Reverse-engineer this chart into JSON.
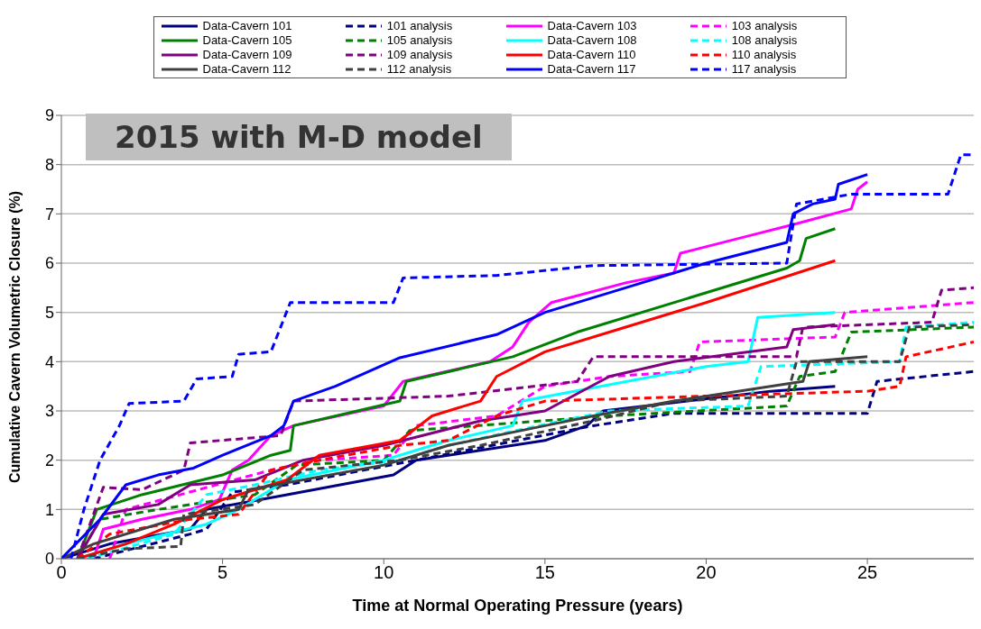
{
  "chart_data": {
    "type": "line",
    "xlabel": "Time at Normal Operating Pressure (years)",
    "ylabel": "Cumulative Cavern Volumetric Closure (%)",
    "annotations": [
      "2015 with M-D model"
    ],
    "xlim": [
      0,
      28.3
    ],
    "xticks": [
      0,
      5,
      10,
      15,
      20,
      25
    ],
    "ylim": [
      0,
      9
    ],
    "yticks": [
      0,
      1,
      2,
      3,
      4,
      5,
      6,
      7,
      8,
      9
    ],
    "grid": "y",
    "legend": "top",
    "marker": "none",
    "series": [
      {
        "name": "Data-Cavern 101",
        "color": "#000080",
        "line_style": "solid",
        "x": [
          0,
          1.5,
          4,
          4.5,
          7,
          10.3,
          11,
          15,
          16.3,
          16.8,
          22,
          24
        ],
        "values": [
          0,
          0.3,
          0.6,
          1.0,
          1.3,
          1.7,
          2.0,
          2.4,
          2.7,
          3.0,
          3.4,
          3.5
        ]
      },
      {
        "name": "101 analysis",
        "color": "#000080",
        "line_style": "dashed",
        "x": [
          1,
          4,
          4.5,
          5.3,
          7,
          11,
          16.5,
          19,
          25,
          25.3,
          28.3
        ],
        "values": [
          0,
          0.5,
          0.6,
          1.35,
          1.5,
          2.0,
          2.7,
          2.95,
          2.95,
          3.6,
          3.8
        ]
      },
      {
        "name": "Data-Cavern 103",
        "color": "#ff00ff",
        "line_style": "solid",
        "x": [
          1,
          1.3,
          2.5,
          4,
          4.9,
          5.3,
          5.8,
          6.5,
          7.2,
          10,
          10.6,
          13.3,
          14,
          14.5,
          15.2,
          17.5,
          19,
          19.2,
          21,
          22.8,
          24.5,
          24.7,
          25
        ],
        "values": [
          0,
          0.6,
          0.8,
          1.0,
          1.2,
          1.8,
          2.0,
          2.5,
          2.7,
          3.1,
          3.6,
          4.0,
          4.3,
          4.8,
          5.2,
          5.6,
          5.8,
          6.2,
          6.5,
          6.8,
          7.1,
          7.5,
          7.65
        ]
      },
      {
        "name": "103 analysis",
        "color": "#ff00ff",
        "line_style": "dashed",
        "x": [
          1.5,
          2,
          6.5,
          8,
          10.3,
          11,
          13.5,
          15,
          17,
          19.5,
          19.8,
          24,
          24.3,
          28.3
        ],
        "values": [
          0,
          1.0,
          1.8,
          2.0,
          2.1,
          2.7,
          2.9,
          3.5,
          3.7,
          3.8,
          4.4,
          4.5,
          5.0,
          5.2
        ]
      },
      {
        "name": "Data-Cavern 105",
        "color": "#008000",
        "line_style": "solid",
        "x": [
          0.5,
          1.1,
          2.5,
          5,
          6.5,
          7.1,
          7.2,
          10.5,
          10.7,
          14,
          16,
          19.5,
          22.5,
          22.9,
          23.1,
          24
        ],
        "values": [
          0,
          1.0,
          1.3,
          1.7,
          2.1,
          2.2,
          2.7,
          3.2,
          3.6,
          4.1,
          4.6,
          5.3,
          5.9,
          6.05,
          6.5,
          6.7
        ]
      },
      {
        "name": "105 analysis",
        "color": "#008000",
        "line_style": "dashed",
        "x": [
          0.5,
          1.2,
          3,
          6,
          7.3,
          10,
          10.8,
          17,
          22.5,
          22.9,
          24,
          24.5,
          28.3
        ],
        "values": [
          0,
          0.8,
          1.0,
          1.3,
          1.9,
          2.0,
          2.6,
          2.9,
          3.1,
          3.7,
          3.8,
          4.6,
          4.7
        ]
      },
      {
        "name": "Data-Cavern 108",
        "color": "#00ffff",
        "line_style": "solid",
        "x": [
          0.5,
          2,
          4.5,
          5.5,
          7,
          10,
          12,
          14,
          14.3,
          20,
          21.3,
          21.6,
          24
        ],
        "values": [
          0,
          0.3,
          0.7,
          1.0,
          1.6,
          2.0,
          2.4,
          2.7,
          3.2,
          3.9,
          4.0,
          4.9,
          5.0
        ]
      },
      {
        "name": "108 analysis",
        "color": "#00ffff",
        "line_style": "dashed",
        "x": [
          0.8,
          3.5,
          4.5,
          6,
          8,
          10.5,
          12,
          14.8,
          17,
          21.3,
          21.7,
          26,
          26.2,
          28.3
        ],
        "values": [
          0,
          0.5,
          1.3,
          1.5,
          1.8,
          2.0,
          2.3,
          2.7,
          3.0,
          3.1,
          3.9,
          4.0,
          4.7,
          4.8
        ]
      },
      {
        "name": "Data-Cavern 109",
        "color": "#800080",
        "line_style": "solid",
        "x": [
          0.5,
          1.3,
          3,
          4,
          6,
          7.5,
          10,
          13,
          15,
          17,
          19,
          22.5,
          22.7,
          24
        ],
        "values": [
          0,
          0.9,
          1.1,
          1.5,
          1.6,
          2.0,
          2.3,
          2.8,
          3.0,
          3.7,
          4.0,
          4.3,
          4.65,
          4.75
        ]
      },
      {
        "name": "109 analysis",
        "color": "#800080",
        "line_style": "dashed",
        "x": [
          0.5,
          1.3,
          2.5,
          3.8,
          4,
          6.8,
          7.2,
          12,
          16,
          16.5,
          22.8,
          23,
          27,
          27.3,
          28.3
        ],
        "values": [
          0,
          1.45,
          1.4,
          1.8,
          2.35,
          2.5,
          3.2,
          3.3,
          3.6,
          4.1,
          4.1,
          4.7,
          4.8,
          5.45,
          5.5
        ]
      },
      {
        "name": "Data-Cavern 110",
        "color": "#ff0000",
        "line_style": "solid",
        "x": [
          0.5,
          2,
          3.5,
          5,
          6.5,
          7,
          8,
          10.5,
          11.5,
          13,
          13.5,
          15,
          17,
          20,
          24
        ],
        "values": [
          0,
          0.3,
          0.7,
          1.2,
          1.5,
          1.6,
          2.1,
          2.4,
          2.9,
          3.2,
          3.7,
          4.2,
          4.6,
          5.2,
          6.05
        ]
      },
      {
        "name": "110 analysis",
        "color": "#ff0000",
        "line_style": "dashed",
        "x": [
          0.5,
          1.5,
          4,
          5.5,
          6.5,
          8,
          10.5,
          12,
          13.5,
          15,
          20,
          25,
          26,
          26.2,
          28.3
        ],
        "values": [
          0,
          0.5,
          0.8,
          0.9,
          1.8,
          2.0,
          2.3,
          2.4,
          2.9,
          3.2,
          3.3,
          3.4,
          3.5,
          4.1,
          4.4
        ]
      },
      {
        "name": "Data-Cavern 112",
        "color": "#404040",
        "line_style": "solid",
        "x": [
          0,
          1,
          3.5,
          5.5,
          5.8,
          10,
          12,
          15,
          16.5,
          19,
          23,
          23.2,
          25
        ],
        "values": [
          0,
          0.3,
          0.8,
          1.0,
          1.4,
          1.9,
          2.3,
          2.7,
          2.9,
          3.2,
          3.6,
          4.0,
          4.1
        ]
      },
      {
        "name": "112 analysis",
        "color": "#404040",
        "line_style": "dashed",
        "x": [
          0.5,
          2,
          3.7,
          3.8,
          6,
          7.5,
          10.5,
          13,
          16.5,
          19,
          22.5,
          22.8,
          26,
          26.3,
          28.3
        ],
        "values": [
          0,
          0.2,
          0.25,
          0.9,
          1.1,
          1.8,
          2.0,
          2.3,
          2.8,
          3.2,
          3.3,
          4.0,
          4.0,
          4.7,
          4.75
        ]
      },
      {
        "name": "Data-Cavern 117",
        "color": "#0000ff",
        "line_style": "solid",
        "x": [
          0,
          1.2,
          2,
          3,
          4.1,
          5,
          6.5,
          6.9,
          7.2,
          8.5,
          10.5,
          13.5,
          15,
          17.5,
          20,
          22.5,
          22.7,
          23.3,
          24,
          24.1,
          25
        ],
        "values": [
          0,
          0.8,
          1.5,
          1.7,
          1.84,
          2.1,
          2.5,
          2.7,
          3.2,
          3.5,
          4.08,
          4.55,
          5.0,
          5.5,
          6.0,
          6.42,
          7.0,
          7.2,
          7.3,
          7.6,
          7.8
        ]
      },
      {
        "name": "117 analysis",
        "color": "#0000ff",
        "line_style": "dashed",
        "x": [
          0.3,
          0.7,
          1.2,
          1.8,
          2.1,
          3.8,
          4.2,
          5.3,
          5.5,
          6.5,
          7.1,
          10.3,
          10.6,
          13.5,
          16.5,
          22.5,
          22.8,
          24.5,
          27.5,
          27.9,
          28.3
        ],
        "values": [
          0,
          1.0,
          2.0,
          2.7,
          3.15,
          3.2,
          3.65,
          3.7,
          4.15,
          4.2,
          5.2,
          5.2,
          5.7,
          5.75,
          5.95,
          6.0,
          7.2,
          7.4,
          7.4,
          8.2,
          8.2
        ]
      }
    ]
  }
}
